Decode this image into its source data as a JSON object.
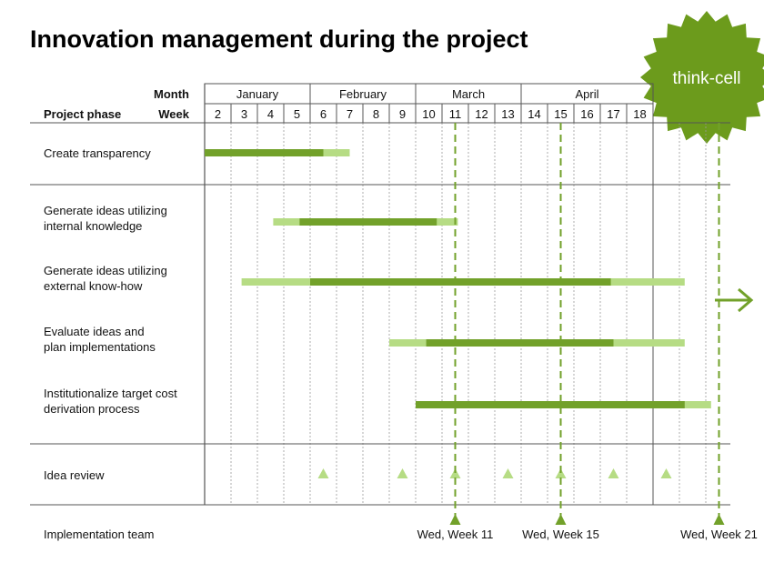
{
  "title": "Innovation management during the project",
  "badge": {
    "text": "think-cell",
    "color": "#6c9b1c"
  },
  "colors": {
    "dark": "#72a12a",
    "light": "#b6dc84",
    "grid": "#555555"
  },
  "header": {
    "month_label": "Month",
    "week_label": "Week",
    "phase_label": "Project phase"
  },
  "chart_data": {
    "type": "gantt",
    "months": [
      {
        "name": "January",
        "weeks": [
          2,
          3,
          4,
          5
        ]
      },
      {
        "name": "February",
        "weeks": [
          6,
          7,
          8,
          9
        ]
      },
      {
        "name": "March",
        "weeks": [
          10,
          11,
          12,
          13
        ]
      },
      {
        "name": "April",
        "weeks": [
          14,
          15,
          16,
          17,
          18
        ]
      }
    ],
    "weeks": [
      2,
      3,
      4,
      5,
      6,
      7,
      8,
      9,
      10,
      11,
      12,
      13,
      14,
      15,
      16,
      17,
      18
    ],
    "tasks": [
      {
        "label": [
          "Create transparency"
        ],
        "light": [
          2,
          7.5
        ],
        "dark": [
          2,
          6.5
        ]
      },
      {
        "label": [
          "Generate ideas utilizing",
          "internal knowledge"
        ],
        "light": [
          4.6,
          11.6
        ],
        "dark": [
          5.6,
          10.8
        ]
      },
      {
        "label": [
          "Generate ideas utilizing",
          "external know-how"
        ],
        "light": [
          3.4,
          20.2
        ],
        "dark": [
          6,
          17.4
        ]
      },
      {
        "label": [
          "Evaluate ideas and",
          "plan implementations"
        ],
        "light": [
          9,
          20.2
        ],
        "dark": [
          10.4,
          17.5
        ]
      },
      {
        "label": [
          "Institutionalize target cost",
          "derivation process"
        ],
        "light": [
          10,
          21.2
        ],
        "dark": [
          10,
          20.2
        ]
      }
    ],
    "idea_review": {
      "label": "Idea review",
      "weeks": [
        6,
        9,
        11,
        13,
        15,
        17,
        19
      ]
    },
    "implementation_team": {
      "label": "Implementation team",
      "milestones": [
        {
          "week": 11,
          "text": "Wed, Week 11"
        },
        {
          "week": 15,
          "text": "Wed, Week 15"
        },
        {
          "week": 21,
          "text": "Wed, Week 21"
        }
      ]
    }
  }
}
